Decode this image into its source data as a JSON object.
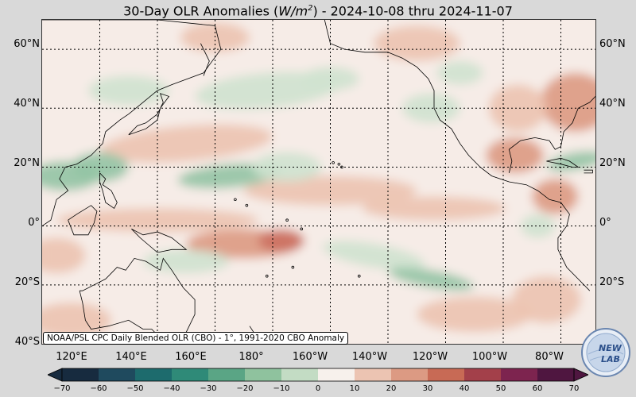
{
  "title": {
    "prefix": "30-Day OLR Anomalies (",
    "unit": "W/m",
    "unit_exp": "2",
    "suffix": ") - 2024-10-08 thru 2024-11-07"
  },
  "lat_labels": [
    "60°N",
    "40°N",
    "20°N",
    "0°",
    "20°S",
    "40°S"
  ],
  "lon_labels": [
    "120°E",
    "140°E",
    "160°E",
    "180°",
    "160°W",
    "140°W",
    "120°W",
    "100°W",
    "80°W"
  ],
  "source_text": "NOAA/PSL CPC Daily Blended OLR (CBO) - 1°, 1991-2020 CBO Anomaly",
  "colorbar": {
    "ticks": [
      "−70",
      "−60",
      "−50",
      "−40",
      "−30",
      "−20",
      "−10",
      "0",
      "10",
      "20",
      "30",
      "40",
      "50",
      "60",
      "70"
    ],
    "min": -70,
    "max": 70,
    "colors": [
      "#172b3f",
      "#1f4a5e",
      "#1d6b6d",
      "#2f8a78",
      "#5aa585",
      "#8fc29e",
      "#c3dcc4",
      "#f7f1ec",
      "#ecc4b2",
      "#dc9a83",
      "#c86a55",
      "#a3404a",
      "#7d244f",
      "#4f1640"
    ]
  },
  "logo": {
    "line1": "NEW",
    "line2": "LAB"
  },
  "map": {
    "lat_range": [
      -40,
      70
    ],
    "lon_range_east": [
      100,
      292
    ],
    "colors": {
      "neutral": "#f6ece7",
      "pos_light": "#ecc3b0",
      "pos_mid": "#dd9a82",
      "pos_strong": "#cc7060",
      "neg_light": "#cfe2cf",
      "neg_mid": "#94c4a4",
      "neg_strong": "#5fa586"
    }
  }
}
